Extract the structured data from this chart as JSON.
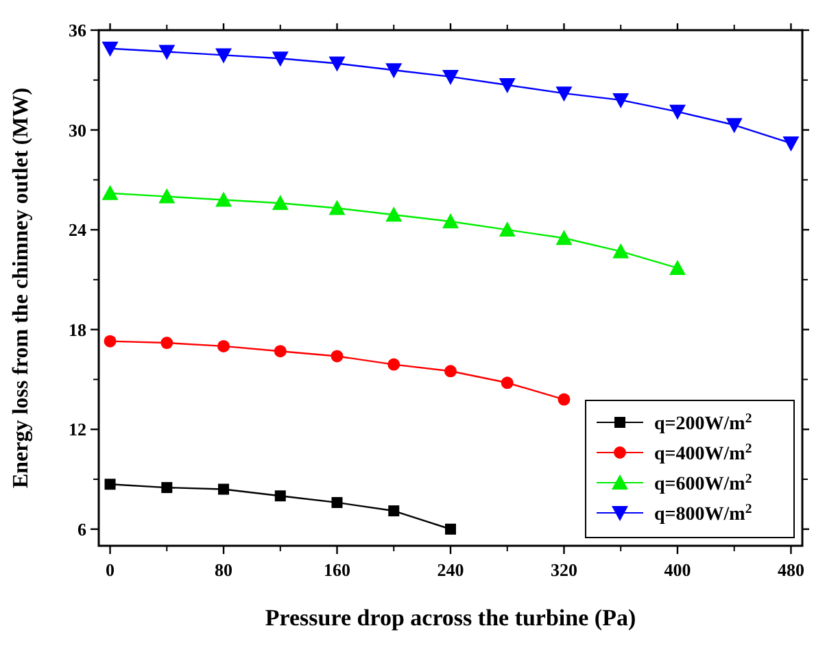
{
  "chart_data": {
    "type": "line",
    "xlabel": "Pressure drop across the turbine (Pa)",
    "ylabel": "Energy loss from the chimney outlet (MW)",
    "xlim": [
      -8,
      488
    ],
    "ylim": [
      5,
      36
    ],
    "xticks": [
      0,
      80,
      160,
      240,
      320,
      400,
      480
    ],
    "yticks": [
      6,
      12,
      18,
      24,
      30,
      36
    ],
    "legend": "bottom right",
    "grid": false,
    "series": [
      {
        "name": "q=200W/m$^{2}$",
        "color": "#000000",
        "marker": "square",
        "x": [
          0,
          40,
          80,
          120,
          160,
          200,
          240
        ],
        "values": [
          8.7,
          8.5,
          8.4,
          8.0,
          7.6,
          7.1,
          6.0
        ]
      },
      {
        "name": "q=400W/m$^{2}$",
        "color": "#ff0000",
        "marker": "circle",
        "x": [
          0,
          40,
          80,
          120,
          160,
          200,
          240,
          280,
          320
        ],
        "values": [
          17.3,
          17.2,
          17.0,
          16.7,
          16.4,
          15.9,
          15.5,
          14.8,
          13.8
        ]
      },
      {
        "name": "q=600W/m$^{2}$",
        "color": "#00ee00",
        "marker": "triangle",
        "x": [
          0,
          40,
          80,
          120,
          160,
          200,
          240,
          280,
          320,
          360,
          400
        ],
        "values": [
          26.2,
          26.0,
          25.8,
          25.6,
          25.3,
          24.9,
          24.5,
          24.0,
          23.5,
          22.7,
          21.7
        ]
      },
      {
        "name": "q=800W/m$^{2}$",
        "color": "#0000ff",
        "marker": "triangle-down",
        "x": [
          0,
          40,
          80,
          120,
          160,
          200,
          240,
          280,
          320,
          360,
          400,
          440,
          480
        ],
        "values": [
          34.9,
          34.7,
          34.5,
          34.3,
          34.0,
          33.6,
          33.2,
          32.7,
          32.2,
          31.8,
          31.1,
          30.3,
          29.2
        ]
      }
    ]
  }
}
